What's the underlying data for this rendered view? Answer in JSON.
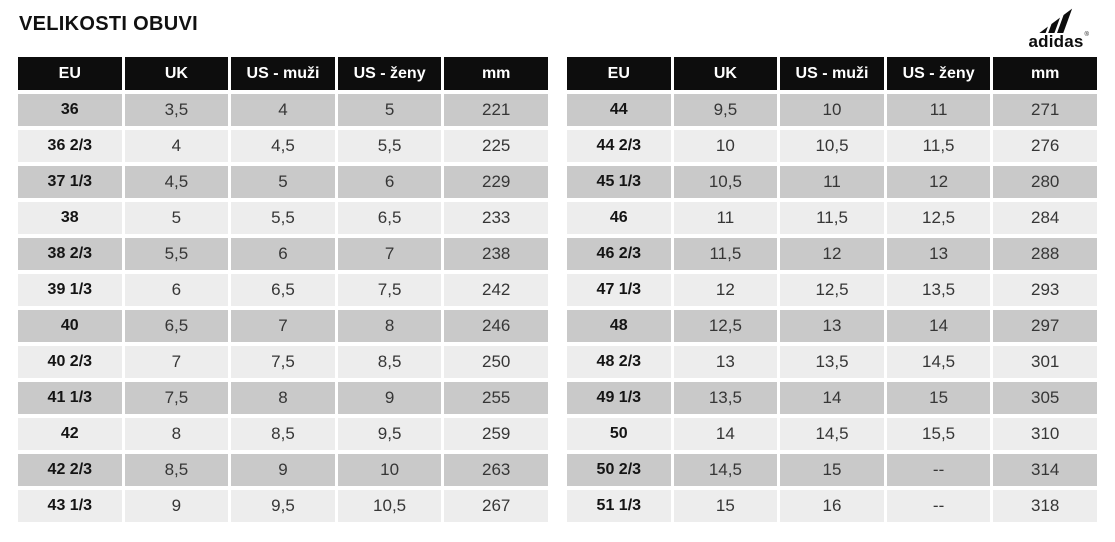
{
  "title": "VELIKOSTI OBUVI",
  "brand": {
    "logo": "adidas-logo",
    "wordmark": "adidas",
    "registered_mark": "®"
  },
  "colors": {
    "header_bg": "#0d0d0d",
    "header_text": "#ffffff",
    "row_dark": "#c9c9c9",
    "row_light": "#ededed",
    "cell_text": "#363636",
    "eu_text": "#141414"
  },
  "columns": [
    "EU",
    "UK",
    "US - muži",
    "US - ženy",
    "mm"
  ],
  "column_keys": [
    "eu",
    "uk",
    "us-men",
    "us-women",
    "mm"
  ],
  "tables": [
    {
      "rows": [
        [
          "36",
          "3,5",
          "4",
          "5",
          "221"
        ],
        [
          "36 2/3",
          "4",
          "4,5",
          "5,5",
          "225"
        ],
        [
          "37 1/3",
          "4,5",
          "5",
          "6",
          "229"
        ],
        [
          "38",
          "5",
          "5,5",
          "6,5",
          "233"
        ],
        [
          "38 2/3",
          "5,5",
          "6",
          "7",
          "238"
        ],
        [
          "39 1/3",
          "6",
          "6,5",
          "7,5",
          "242"
        ],
        [
          "40",
          "6,5",
          "7",
          "8",
          "246"
        ],
        [
          "40 2/3",
          "7",
          "7,5",
          "8,5",
          "250"
        ],
        [
          "41 1/3",
          "7,5",
          "8",
          "9",
          "255"
        ],
        [
          "42",
          "8",
          "8,5",
          "9,5",
          "259"
        ],
        [
          "42 2/3",
          "8,5",
          "9",
          "10",
          "263"
        ],
        [
          "43 1/3",
          "9",
          "9,5",
          "10,5",
          "267"
        ]
      ]
    },
    {
      "rows": [
        [
          "44",
          "9,5",
          "10",
          "11",
          "271"
        ],
        [
          "44 2/3",
          "10",
          "10,5",
          "11,5",
          "276"
        ],
        [
          "45 1/3",
          "10,5",
          "11",
          "12",
          "280"
        ],
        [
          "46",
          "11",
          "11,5",
          "12,5",
          "284"
        ],
        [
          "46 2/3",
          "11,5",
          "12",
          "13",
          "288"
        ],
        [
          "47 1/3",
          "12",
          "12,5",
          "13,5",
          "293"
        ],
        [
          "48",
          "12,5",
          "13",
          "14",
          "297"
        ],
        [
          "48 2/3",
          "13",
          "13,5",
          "14,5",
          "301"
        ],
        [
          "49 1/3",
          "13,5",
          "14",
          "15",
          "305"
        ],
        [
          "50",
          "14",
          "14,5",
          "15,5",
          "310"
        ],
        [
          "50 2/3",
          "14,5",
          "15",
          "--",
          "314"
        ],
        [
          "51 1/3",
          "15",
          "16",
          "--",
          "318"
        ]
      ]
    }
  ]
}
